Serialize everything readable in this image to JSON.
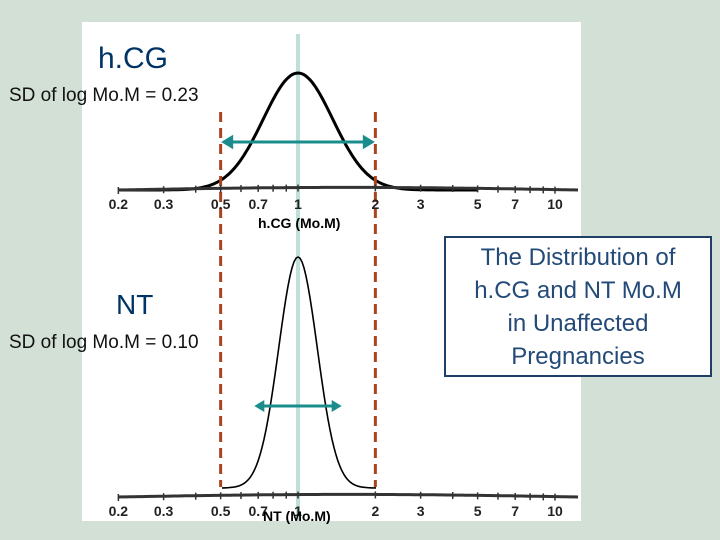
{
  "hcg_panel": {
    "title": "h.CG",
    "sd_text": "SD of log Mo.M = 0.23",
    "axis_label": "h.CG (Mo.M)",
    "sd_of_log_mom": 0.23
  },
  "nt_panel": {
    "title": "NT",
    "sd_text": "SD of log Mo.M = 0.10",
    "axis_label": "NT (Mo.M)",
    "sd_of_log_mom": 0.1
  },
  "axis": {
    "scale": "log",
    "ticks": [
      "0.2",
      "0.3",
      "0.5",
      "0.7",
      "1",
      "2",
      "3",
      "5",
      "7",
      "10"
    ],
    "tick_values": [
      0.2,
      0.3,
      0.5,
      0.7,
      1,
      2,
      3,
      5,
      7,
      10
    ],
    "median_mom": 1,
    "reference_lines_mom": [
      0.5,
      2
    ]
  },
  "caption": "The Distribution of\nh.CG and NT Mo.M\nin Unaffected\nPregnancies",
  "colors": {
    "background": "#d3e0d6",
    "median_line": "#bfe0da",
    "reference_line": "#a9441f",
    "arrow": "#1a8c8c",
    "curve": "#000000",
    "caption_border": "#1f3f66",
    "caption_text": "#244a78"
  }
}
